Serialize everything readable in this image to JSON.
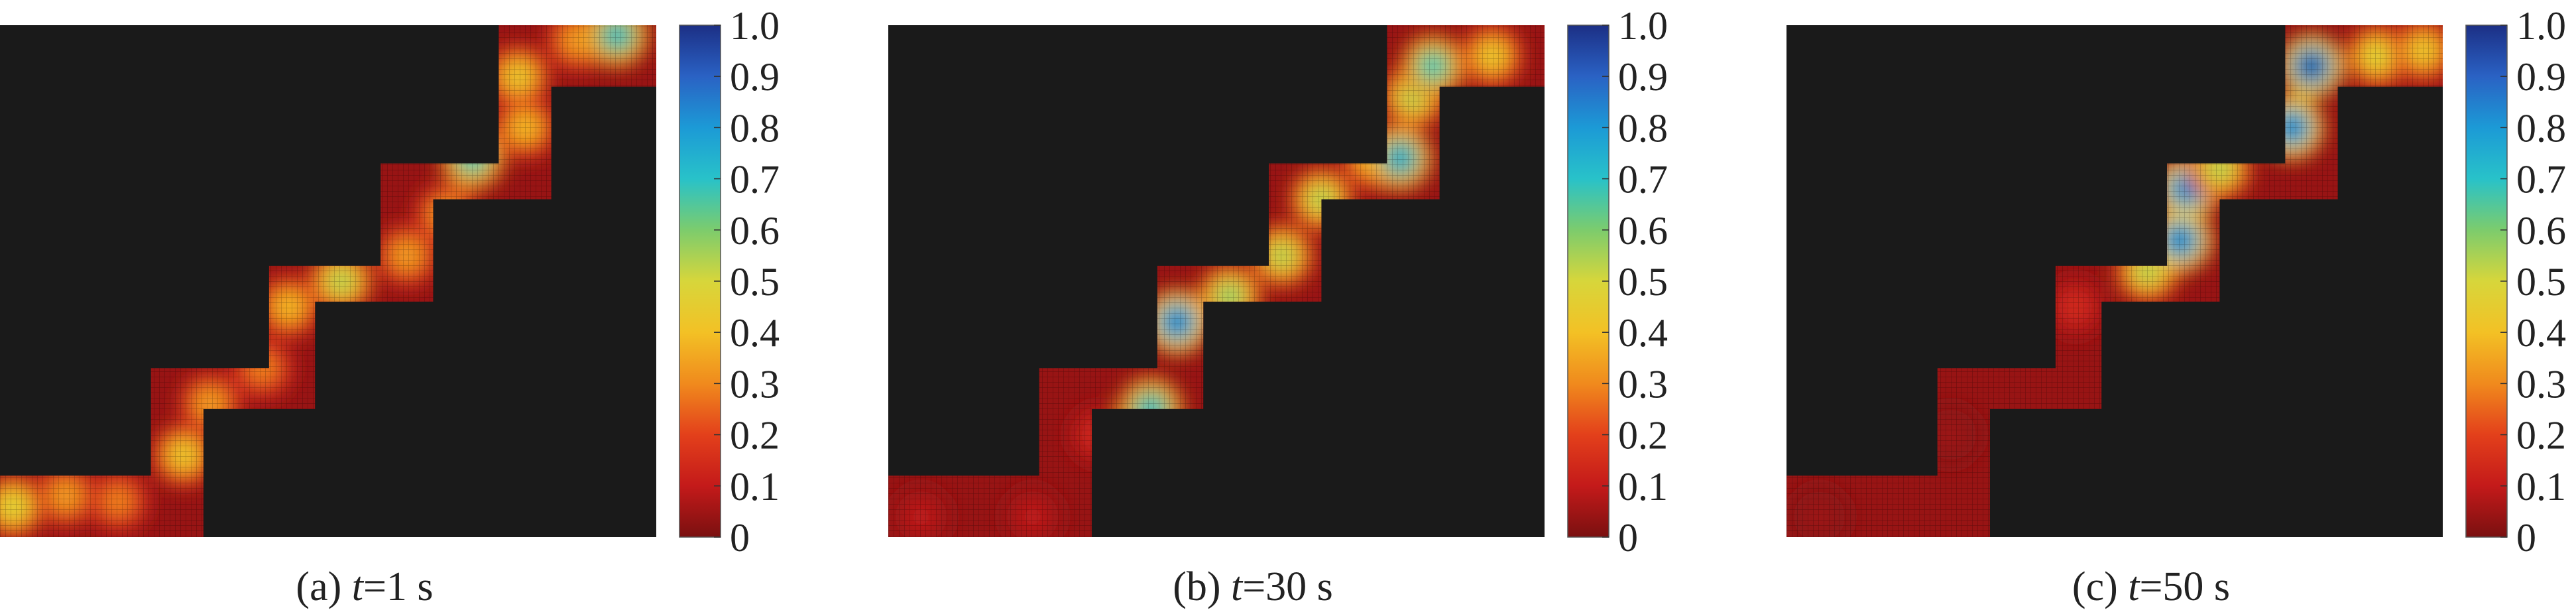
{
  "figure": {
    "colorbar": {
      "ticks": [
        "1.0",
        "0.9",
        "0.8",
        "0.7",
        "0.6",
        "0.5",
        "0.4",
        "0.3",
        "0.2",
        "0.1",
        "0"
      ],
      "range": [
        0,
        1.0
      ],
      "colormap": "jet",
      "colors": [
        "#1c2f85",
        "#2a62c4",
        "#1c9ad6",
        "#28c2c9",
        "#7ccc6d",
        "#d7d63b",
        "#f3c125",
        "#f08a1d",
        "#e3401b",
        "#c41a1a",
        "#7a1010"
      ]
    },
    "panels": [
      {
        "label_prefix": "(a) ",
        "label_var": "t",
        "label_suffix": "=1 s"
      },
      {
        "label_prefix": "(b) ",
        "label_var": "t",
        "label_suffix": "=30 s"
      },
      {
        "label_prefix": "(c) ",
        "label_var": "t",
        "label_suffix": "=50 s"
      }
    ]
  },
  "chart_data": [
    {
      "type": "heatmap",
      "title": "(a) t=1 s",
      "domain": "staircase channel from lower-left to upper-right; black = outside domain",
      "value_range": [
        0,
        1.0
      ],
      "hotspots": [
        {
          "x": 0.02,
          "y": 0.06,
          "value": 0.5
        },
        {
          "x": 0.1,
          "y": 0.08,
          "value": 0.35
        },
        {
          "x": 0.18,
          "y": 0.07,
          "value": 0.3
        },
        {
          "x": 0.28,
          "y": 0.16,
          "value": 0.45
        },
        {
          "x": 0.32,
          "y": 0.26,
          "value": 0.35
        },
        {
          "x": 0.4,
          "y": 0.33,
          "value": 0.3
        },
        {
          "x": 0.44,
          "y": 0.45,
          "value": 0.4
        },
        {
          "x": 0.52,
          "y": 0.5,
          "value": 0.55
        },
        {
          "x": 0.62,
          "y": 0.55,
          "value": 0.35
        },
        {
          "x": 0.68,
          "y": 0.63,
          "value": 0.35
        },
        {
          "x": 0.72,
          "y": 0.74,
          "value": 0.7
        },
        {
          "x": 0.8,
          "y": 0.8,
          "value": 0.4
        },
        {
          "x": 0.79,
          "y": 0.9,
          "value": 0.45
        },
        {
          "x": 0.88,
          "y": 0.97,
          "value": 0.35
        },
        {
          "x": 0.94,
          "y": 0.98,
          "value": 0.75
        }
      ]
    },
    {
      "type": "heatmap",
      "title": "(b) t=30 s",
      "domain": "staircase channel from lower-left to upper-right; black = outside domain",
      "value_range": [
        0,
        1.0
      ],
      "hotspots": [
        {
          "x": 0.05,
          "y": 0.04,
          "value": 0.1
        },
        {
          "x": 0.22,
          "y": 0.04,
          "value": 0.1
        },
        {
          "x": 0.32,
          "y": 0.2,
          "value": 0.15
        },
        {
          "x": 0.4,
          "y": 0.25,
          "value": 0.75
        },
        {
          "x": 0.44,
          "y": 0.42,
          "value": 0.9
        },
        {
          "x": 0.52,
          "y": 0.47,
          "value": 0.6
        },
        {
          "x": 0.6,
          "y": 0.55,
          "value": 0.55
        },
        {
          "x": 0.66,
          "y": 0.66,
          "value": 0.55
        },
        {
          "x": 0.74,
          "y": 0.74,
          "value": 0.45
        },
        {
          "x": 0.78,
          "y": 0.74,
          "value": 0.8
        },
        {
          "x": 0.8,
          "y": 0.86,
          "value": 0.55
        },
        {
          "x": 0.83,
          "y": 0.92,
          "value": 0.7
        },
        {
          "x": 0.92,
          "y": 0.94,
          "value": 0.45
        }
      ]
    },
    {
      "type": "heatmap",
      "title": "(c) t=50 s",
      "domain": "staircase channel from lower-left to upper-right; black = outside domain",
      "value_range": [
        0,
        1.0
      ],
      "hotspots": [
        {
          "x": 0.05,
          "y": 0.04,
          "value": 0.05
        },
        {
          "x": 0.25,
          "y": 0.2,
          "value": 0.05
        },
        {
          "x": 0.44,
          "y": 0.45,
          "value": 0.15
        },
        {
          "x": 0.55,
          "y": 0.52,
          "value": 0.55
        },
        {
          "x": 0.6,
          "y": 0.58,
          "value": 0.9
        },
        {
          "x": 0.61,
          "y": 0.68,
          "value": 0.9
        },
        {
          "x": 0.66,
          "y": 0.72,
          "value": 0.55
        },
        {
          "x": 0.77,
          "y": 0.8,
          "value": 0.9
        },
        {
          "x": 0.8,
          "y": 0.92,
          "value": 1.0
        },
        {
          "x": 0.9,
          "y": 0.94,
          "value": 0.5
        },
        {
          "x": 0.97,
          "y": 0.95,
          "value": 0.45
        }
      ]
    }
  ]
}
